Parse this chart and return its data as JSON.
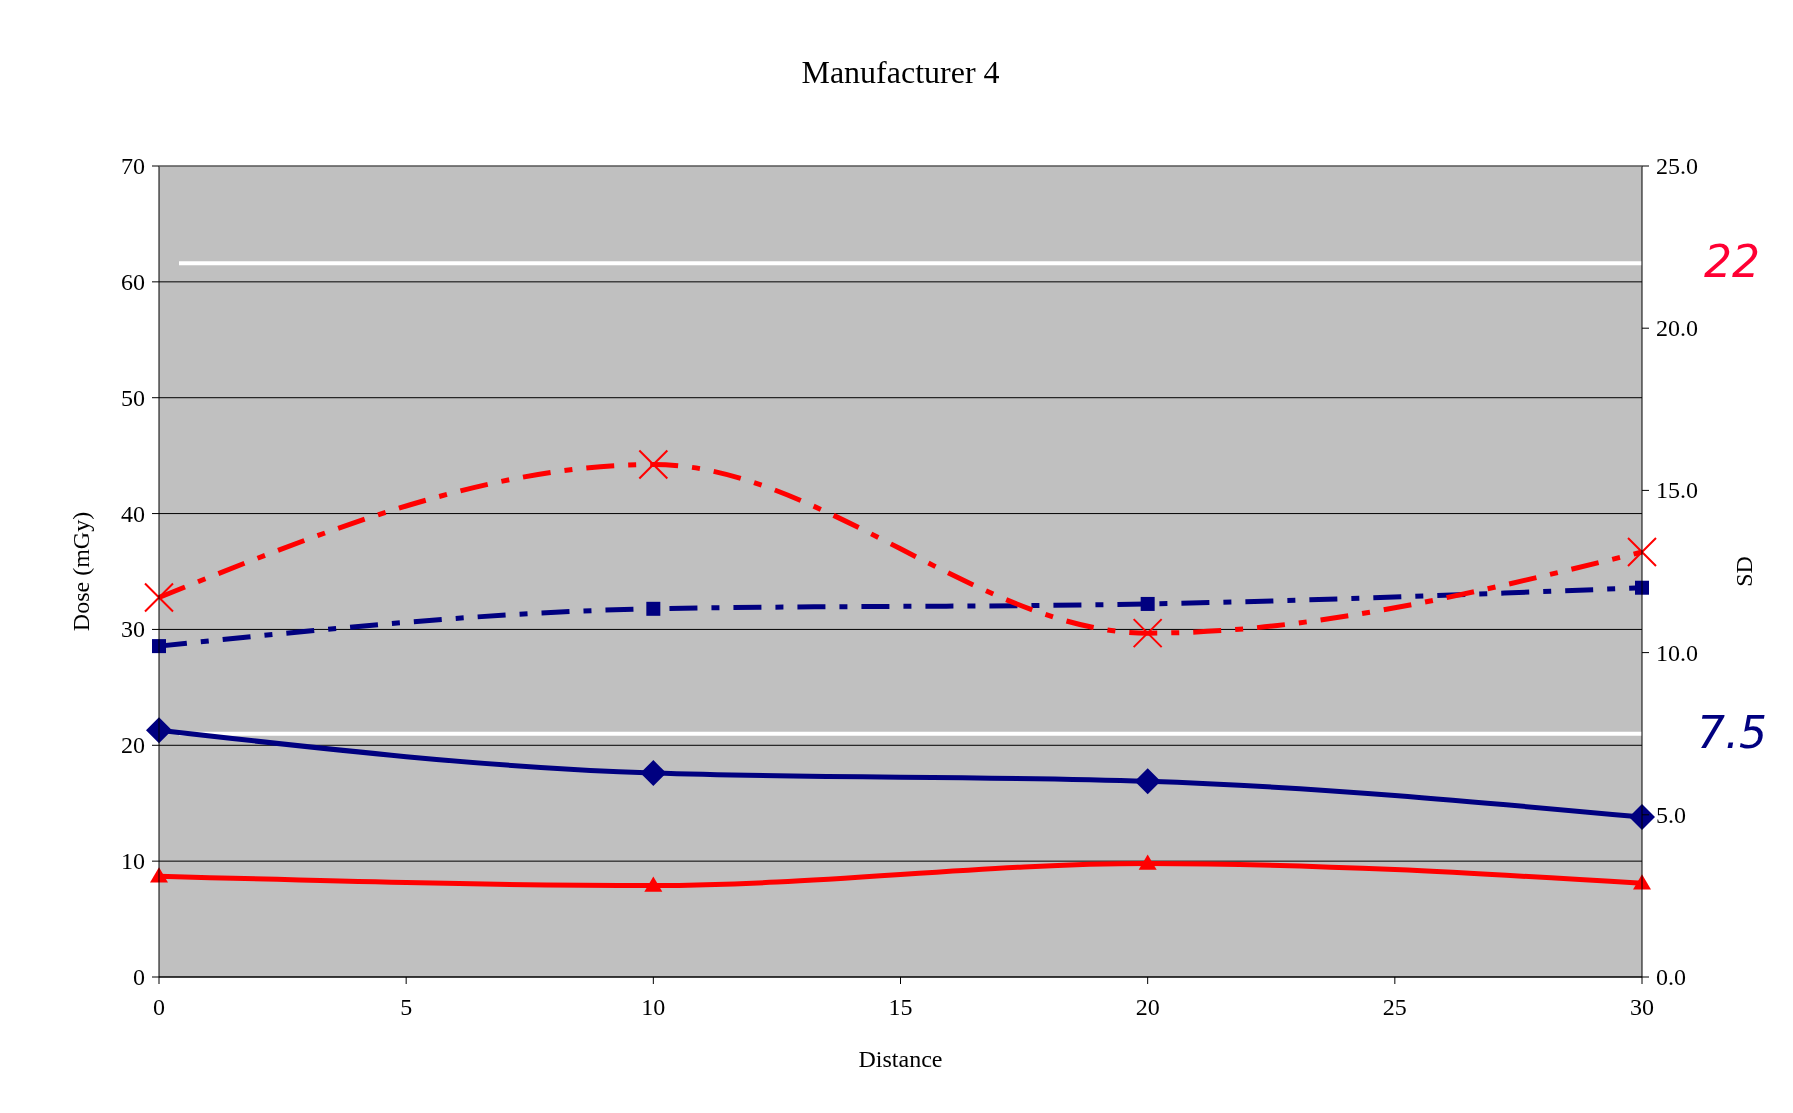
{
  "chart_data": {
    "type": "line",
    "title": "Manufacturer 4",
    "xlabel": "Distance",
    "ylabel": "Dose (mGy)",
    "y2label": "SD",
    "x": [
      0,
      10,
      20,
      30
    ],
    "xlim": [
      0,
      30
    ],
    "xticks": [
      0,
      5,
      10,
      15,
      20,
      25,
      30
    ],
    "ylim": [
      0,
      70
    ],
    "yticks": [
      0,
      10,
      20,
      30,
      40,
      50,
      60,
      70
    ],
    "y2lim": [
      0,
      25
    ],
    "y2ticks": [
      {
        "value": 0,
        "label": "0.0"
      },
      {
        "value": 5,
        "label": "5.0"
      },
      {
        "value": 10,
        "label": "10.0"
      },
      {
        "value": 15,
        "label": "15.0"
      },
      {
        "value": 20,
        "label": "20.0"
      },
      {
        "value": 25,
        "label": "25.0"
      }
    ],
    "grid": "y",
    "series": [
      {
        "color": "#ff0000",
        "values": [
          8.7,
          7.9,
          9.8,
          8.1
        ],
        "marker": "triangle",
        "line_style": "solid"
      },
      {
        "color": "#000080",
        "values": [
          21.3,
          17.6,
          16.9,
          13.8
        ],
        "marker": "diamond",
        "line_style": "solid"
      },
      {
        "color": "#000080",
        "values": [
          10.2,
          11.35,
          11.5,
          12.0
        ],
        "marker": "square",
        "line_style": "dashed",
        "axis": "y2"
      },
      {
        "color": "#ff0000",
        "values": [
          11.7,
          15.8,
          10.6,
          13.1
        ],
        "marker": "cross",
        "line_style": "dashed",
        "axis": "y2"
      }
    ],
    "ref_lines": [
      {
        "axis": "y2",
        "value": 22,
        "label": "22",
        "color": "#ffffff"
      },
      {
        "axis": "y2",
        "value": 7.5,
        "label": "7.5",
        "color": "#ffffff"
      }
    ]
  }
}
